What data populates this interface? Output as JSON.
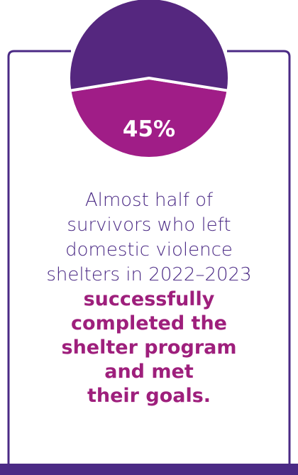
{
  "colors": {
    "purple": "#55277f",
    "magenta": "#a01d87",
    "text_purple": "#4b2a85",
    "text_magenta": "#9e1f7c",
    "border": "#4b2a85"
  },
  "chart_data": {
    "type": "pie",
    "slices": [
      {
        "value": 45,
        "label": "45%",
        "color": "#a01d87"
      },
      {
        "value": 55,
        "label": "",
        "color": "#55277f"
      }
    ]
  },
  "body": {
    "lines": [
      "Almost half of",
      "survivors who left",
      "domestic violence",
      "shelters in 2022–2023"
    ],
    "bold_lines": [
      "successfully",
      "completed the",
      "shelter program",
      "and met",
      "their goals."
    ]
  }
}
